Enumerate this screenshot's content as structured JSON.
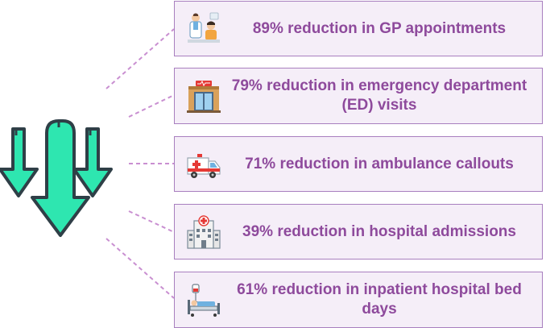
{
  "items": [
    {
      "label": "89% reduction in GP appointments",
      "icon": "doctor-patient-icon"
    },
    {
      "label": "79% reduction in emergency department (ED) visits",
      "icon": "emergency-room-icon"
    },
    {
      "label": "71% reduction in ambulance callouts",
      "icon": "ambulance-icon"
    },
    {
      "label": "39% reduction in hospital admissions",
      "icon": "hospital-building-icon"
    },
    {
      "label": "61% reduction in inpatient hospital bed days",
      "icon": "hospital-bed-icon"
    }
  ],
  "colors": {
    "card_background": "#f5eef8",
    "card_border": "#a87fbf",
    "text": "#8e4a9c",
    "connector": "#c98fd1",
    "arrow_fill": "#2ee6b0",
    "arrow_stroke": "#2f3f47"
  }
}
